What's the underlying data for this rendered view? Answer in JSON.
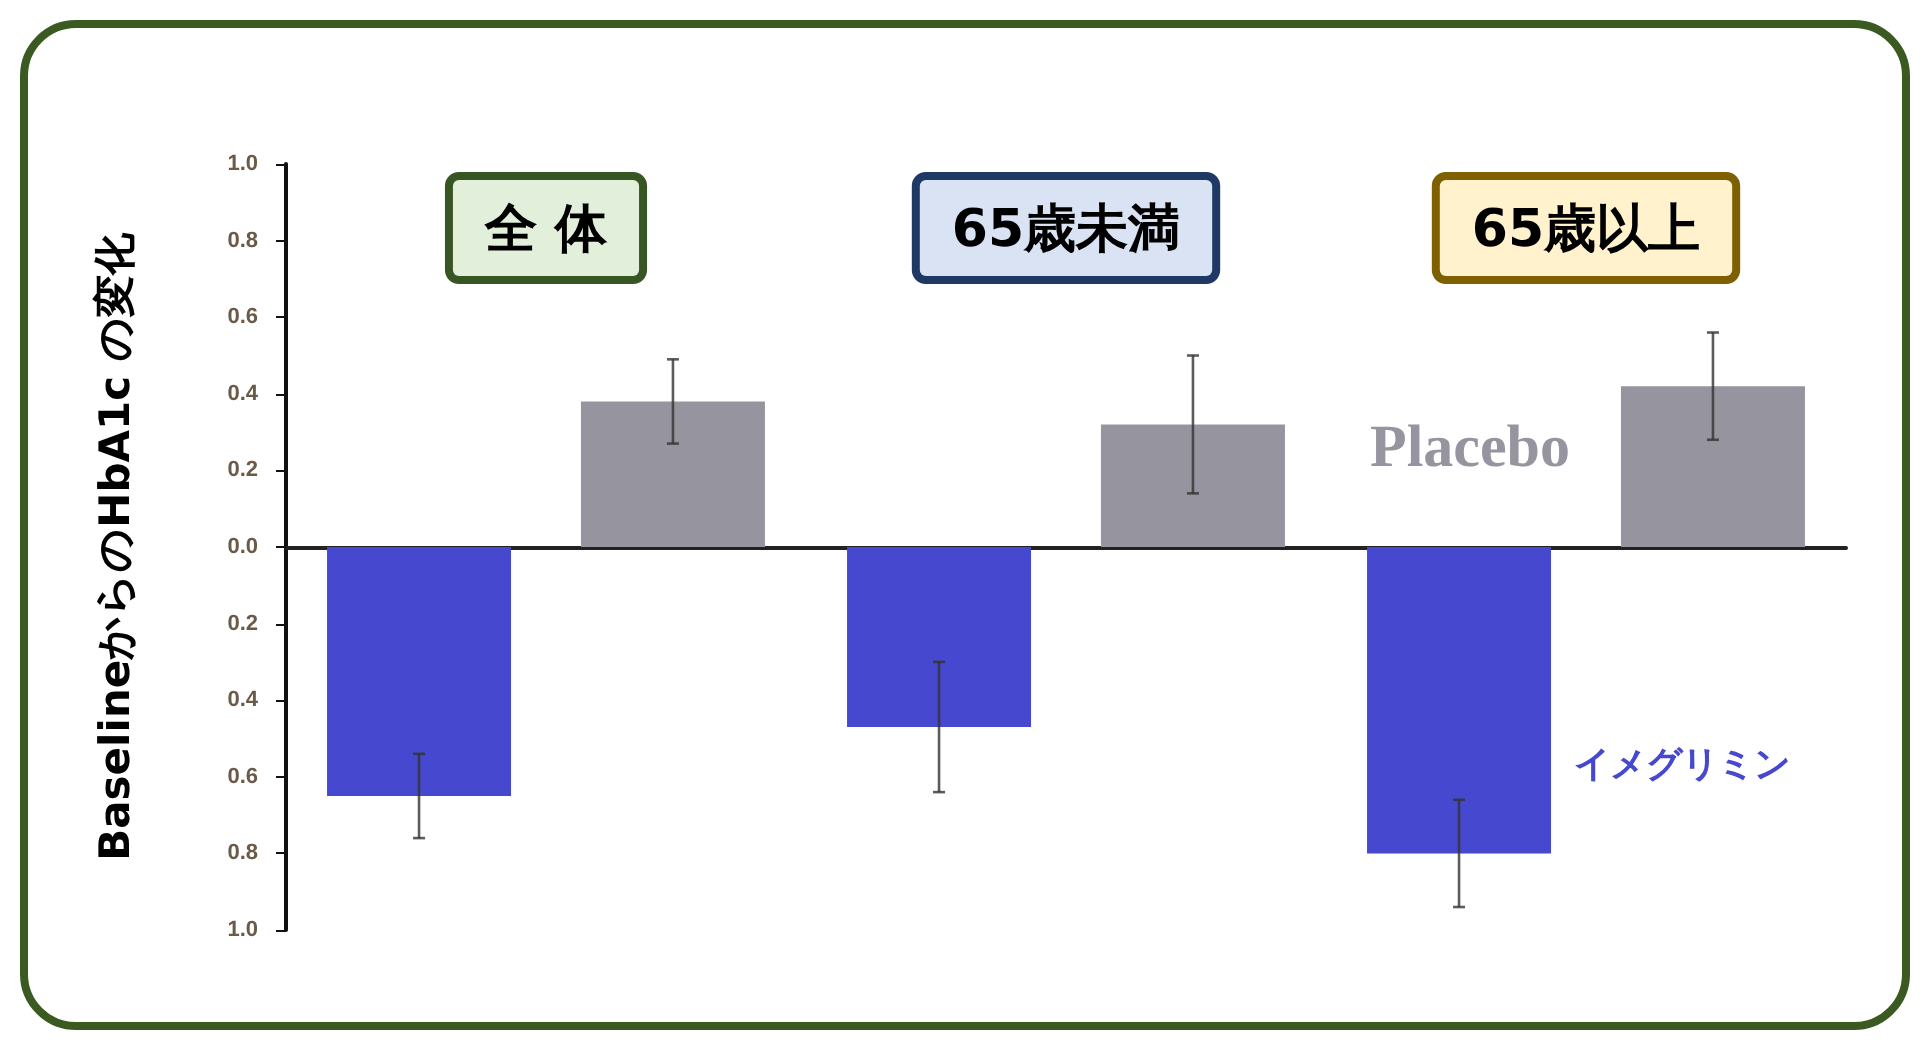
{
  "chart_data": {
    "type": "bar",
    "ylabel": "BaselineからのHbA1c の変化",
    "categories": [
      "全 体",
      "65歳未満",
      "65歳以上"
    ],
    "series": [
      {
        "name": "イメグリミン",
        "color": "#4649cf",
        "values": [
          -0.65,
          -0.47,
          -0.8
        ],
        "errors": [
          0.11,
          0.17,
          0.14
        ]
      },
      {
        "name": "Placebo",
        "color": "#96959f",
        "values": [
          0.38,
          0.32,
          0.42
        ],
        "errors": [
          0.11,
          0.18,
          0.14
        ]
      }
    ],
    "ylim": [
      -1,
      1
    ],
    "yticks": [
      {
        "value": -1,
        "label": "1.0"
      },
      {
        "value": -0.8,
        "label": "0.8"
      },
      {
        "value": -0.6,
        "label": "0.6"
      },
      {
        "value": -0.4,
        "label": "0.4"
      },
      {
        "value": -0.2,
        "label": "0.2"
      },
      {
        "value": 0,
        "label": "0.0"
      },
      {
        "value": 0.2,
        "label": "0.2"
      },
      {
        "value": 0.4,
        "label": "0.4"
      },
      {
        "value": 0.6,
        "label": "0.6"
      },
      {
        "value": 0.8,
        "label": "0.8"
      },
      {
        "value": 1,
        "label": "1.0"
      }
    ],
    "legend": false
  }
}
